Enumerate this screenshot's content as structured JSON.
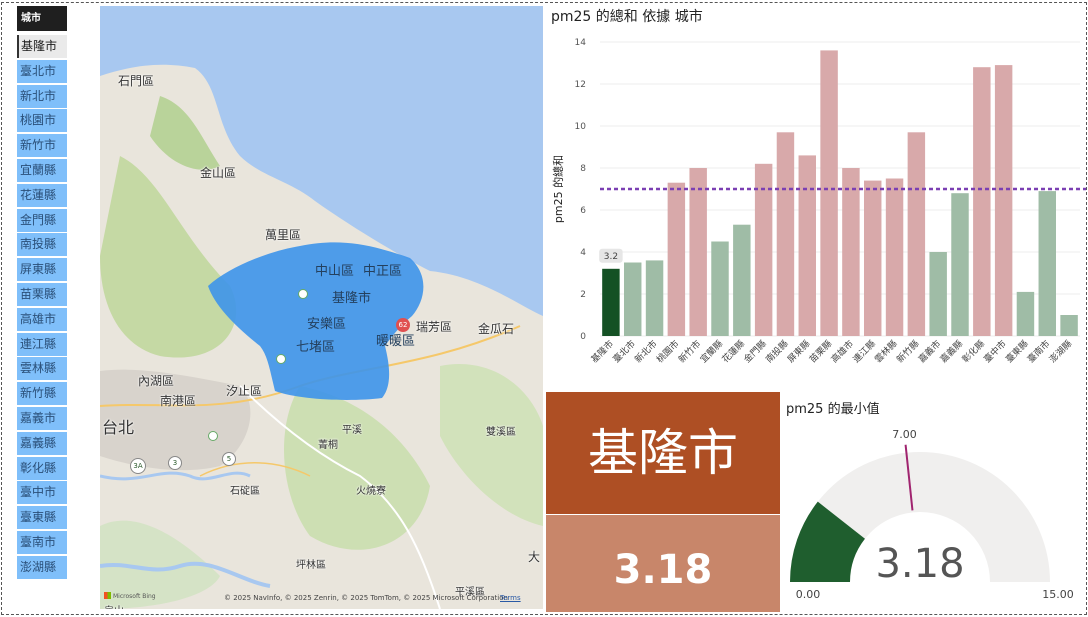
{
  "slicer": {
    "header": "城市",
    "items": [
      "基隆市",
      "臺北市",
      "新北市",
      "桃園市",
      "新竹市",
      "宜蘭縣",
      "花蓮縣",
      "金門縣",
      "南投縣",
      "屏東縣",
      "苗栗縣",
      "高雄市",
      "連江縣",
      "雲林縣",
      "新竹縣",
      "嘉義市",
      "嘉義縣",
      "彰化縣",
      "臺中市",
      "臺東縣",
      "臺南市",
      "澎湖縣"
    ],
    "selected": "基隆市"
  },
  "map": {
    "labels": {
      "shimen": "石門區",
      "jinshan": "金山區",
      "wanli": "萬里區",
      "zhongshan": "中山區",
      "zhongzheng": "中正區",
      "keelung": "基隆市",
      "anle": "安樂區",
      "nuannuan": "暖暖區",
      "qidu": "七堵區",
      "ruifang": "瑞芳區",
      "jinguashi": "金瓜石",
      "neihu": "內湖區",
      "xizhi": "汐止區",
      "nangang": "南港區",
      "taipei": "台北",
      "pingxi": "平溪",
      "jingtong": "菁桐",
      "shuangxi": "雙溪區",
      "shiding": "石碇區",
      "huoshaoliao": "火燒寮",
      "pinglin": "坪林區",
      "pingxi2": "平溪區",
      "edge": "大",
      "bottom": "龜山"
    },
    "attribution": "© 2025 NavInfo, © 2025 Zenrin, © 2025 TomTom, © 2025 Microsoft Corporation",
    "terms": "Terms",
    "brand": "Microsoft Bing",
    "shield": "62",
    "route_badges": [
      "3A",
      "3",
      "5"
    ],
    "colors": {
      "water": "#a8c8f0",
      "highlight": "#3d94ea"
    }
  },
  "chart_data": [
    {
      "type": "bar",
      "title": "pm25 的總和 依據 城市",
      "ylabel": "pm25 的總和",
      "categories": [
        "基隆市",
        "臺北市",
        "新北市",
        "桃園市",
        "新竹市",
        "宜蘭縣",
        "花蓮縣",
        "金門縣",
        "南投縣",
        "屏東縣",
        "苗栗縣",
        "高雄市",
        "連江縣",
        "雲林縣",
        "新竹縣",
        "嘉義市",
        "嘉義縣",
        "彰化縣",
        "臺中市",
        "臺東縣",
        "臺南市",
        "澎湖縣"
      ],
      "values": [
        3.2,
        3.5,
        3.6,
        7.3,
        8.0,
        4.5,
        5.3,
        8.2,
        9.7,
        8.6,
        13.6,
        8.0,
        7.4,
        7.5,
        9.7,
        4.0,
        6.8,
        12.8,
        12.9,
        2.1,
        6.9,
        1.0
      ],
      "ylim": [
        0,
        14
      ],
      "yticks": [
        0,
        2,
        4,
        6,
        8,
        10,
        12,
        14
      ],
      "reference_line": 7.0,
      "data_label": "3.2",
      "colors": {
        "selected": "#145124",
        "above": "#d8a9aa",
        "below": "#9fbca6",
        "reference": "#7b3fb3"
      }
    },
    {
      "type": "gauge",
      "title": "pm25 的最小值",
      "value": 3.18,
      "value_label": "3.18",
      "min": 0,
      "max": 15,
      "target": 7.0,
      "min_label": "0.00",
      "max_label": "15.00",
      "target_label": "7.00",
      "colors": {
        "fill": "#1f5e2e",
        "track": "#f0efee",
        "target": "#a0246f"
      }
    }
  ],
  "cards": {
    "city": "基隆市",
    "value": "3.18"
  }
}
